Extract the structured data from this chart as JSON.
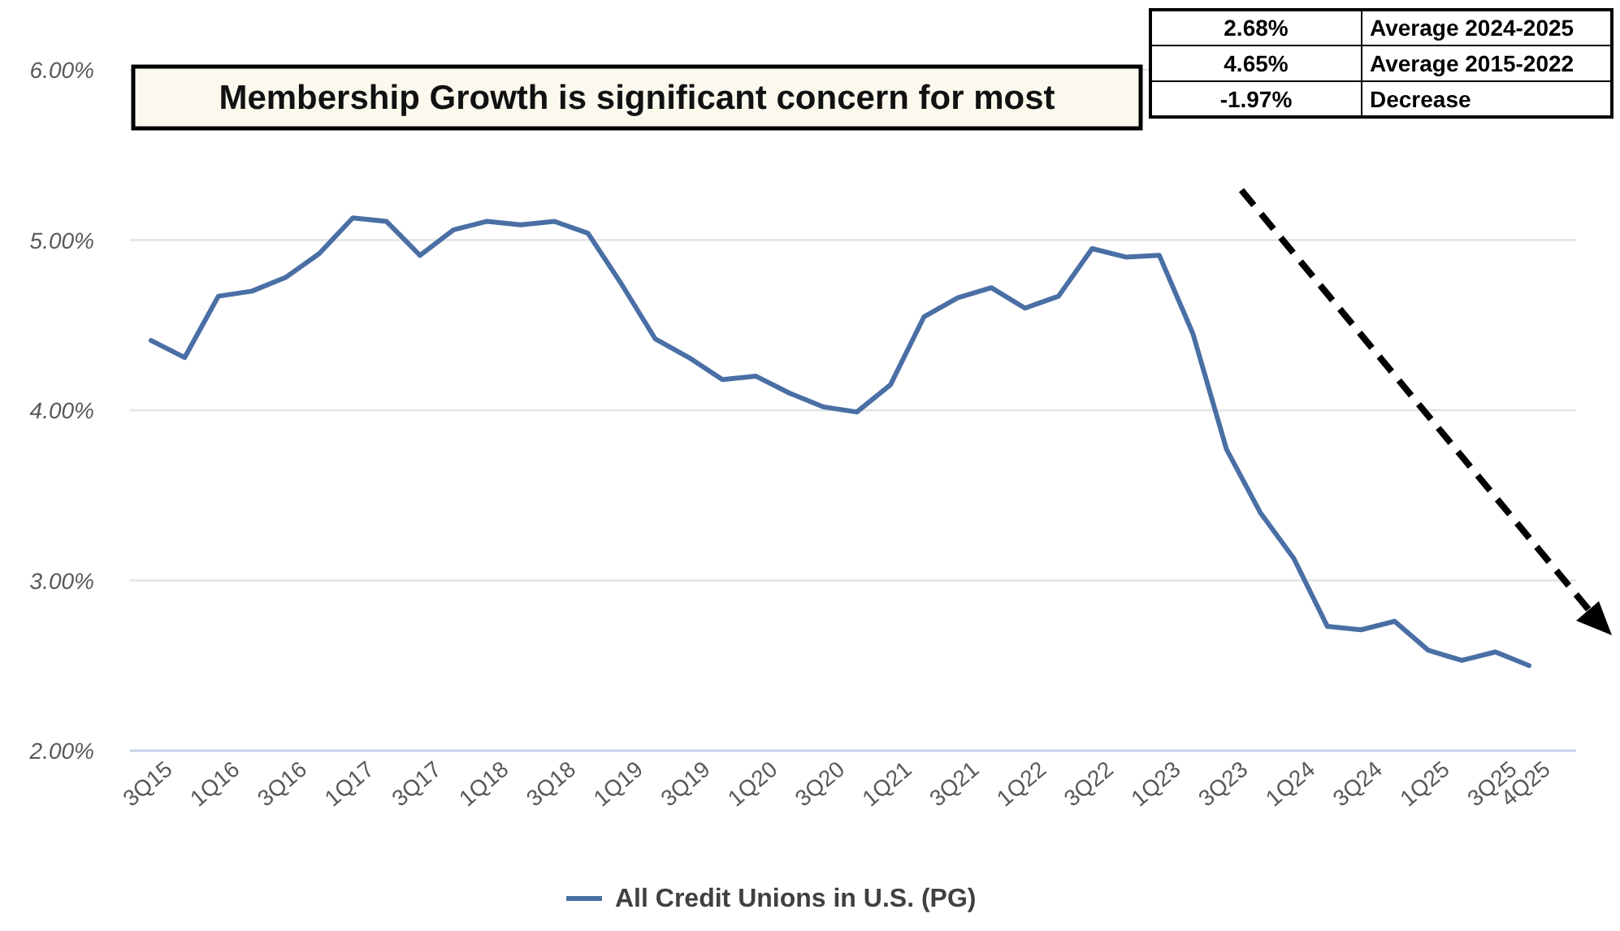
{
  "chart_data": {
    "type": "line",
    "title": "Membership Growth is significant concern for most",
    "categories": [
      "3Q15",
      null,
      "1Q16",
      null,
      "3Q16",
      null,
      "1Q17",
      null,
      "3Q17",
      null,
      "1Q18",
      null,
      "3Q18",
      null,
      "1Q19",
      null,
      "3Q19",
      null,
      "1Q20",
      null,
      "3Q20",
      null,
      "1Q21",
      null,
      "3Q21",
      null,
      "1Q22",
      null,
      "3Q22",
      null,
      "1Q23",
      null,
      "3Q23",
      null,
      "1Q24",
      null,
      "3Q24",
      null,
      "1Q25",
      null,
      "3Q25",
      "4Q25"
    ],
    "series": [
      {
        "name": "All Credit Unions in U.S. (PG)",
        "color": "#4a6fa5",
        "values": [
          4.41,
          4.31,
          4.67,
          4.7,
          4.78,
          4.92,
          5.13,
          5.11,
          4.91,
          5.06,
          5.11,
          5.09,
          5.11,
          5.04,
          4.74,
          4.42,
          4.31,
          4.18,
          4.2,
          4.1,
          4.02,
          3.99,
          4.15,
          4.55,
          4.66,
          4.72,
          4.6,
          4.67,
          4.95,
          4.9,
          4.91,
          4.45,
          3.77,
          3.4,
          3.13,
          2.73,
          2.71,
          2.76,
          2.59,
          2.53,
          2.58,
          2.5
        ]
      }
    ],
    "ylim": [
      2,
      6
    ],
    "yticks": [
      {
        "value": 2,
        "label": "2.00%"
      },
      {
        "value": 3,
        "label": "3.00%"
      },
      {
        "value": 4,
        "label": "4.00%"
      },
      {
        "value": 5,
        "label": "5.00%"
      },
      {
        "value": 6,
        "label": "6.00%"
      }
    ],
    "grid": "y",
    "legend": "bottom",
    "marker": "none",
    "line_style": "solid",
    "annotations": [
      "2.68%",
      "Average 2024-2025",
      "4.65%",
      "Average 2015-2022",
      "-1.97%",
      "Decrease"
    ]
  }
}
